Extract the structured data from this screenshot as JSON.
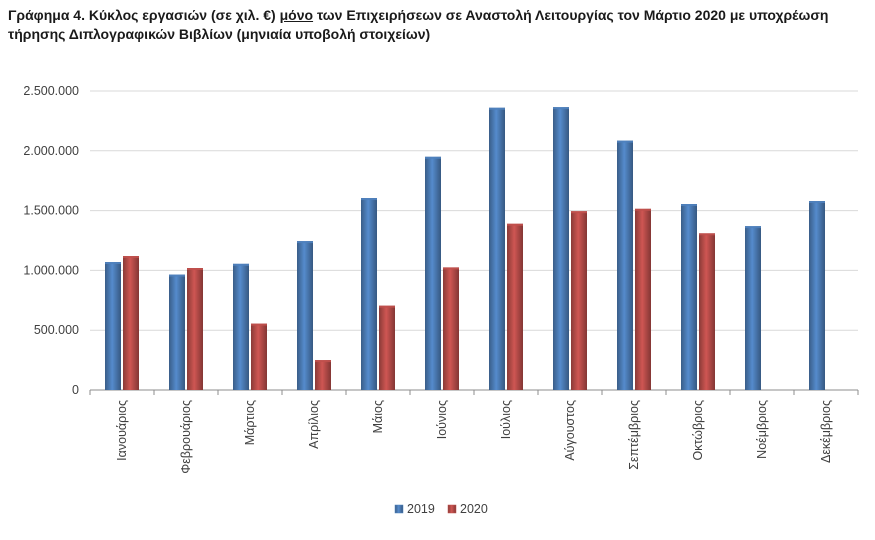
{
  "title": {
    "prefix": "Γράφημα 4",
    "part1": ". Κύκλος εργασιών (σε χιλ. €) ",
    "emphasis": "μόνο",
    "part2": " των Επιχειρήσεων σε Αναστολή Λειτουργίας τον Μάρτιο 2020 με υποχρέωση τήρησης Διπλογραφικών Βιβλίων (μηνιαία υποβολή στοιχείων)"
  },
  "chart_data": {
    "type": "bar",
    "categories": [
      "Ιανουάριος",
      "Φεβρουάριος",
      "Μάρτιος",
      "Απρίλιος",
      "Μάιος",
      "Ιούνιος",
      "Ιούλιος",
      "Αύγουστος",
      "Σεπτέμβριος",
      "Οκτώβριος",
      "Νοέμβριος",
      "Δεκέμβριος"
    ],
    "series": [
      {
        "name": "2019",
        "color": "#4F81BD",
        "values": [
          1070000,
          965000,
          1055000,
          1245000,
          1605000,
          1950000,
          2360000,
          2365000,
          2085000,
          1555000,
          1370000,
          1580000
        ]
      },
      {
        "name": "2020",
        "color": "#C0504D",
        "values": [
          1120000,
          1020000,
          555000,
          250000,
          705000,
          1025000,
          1390000,
          1495000,
          1515000,
          1310000,
          null,
          null
        ]
      }
    ],
    "ylim": [
      0,
      2500000
    ],
    "yticks": [
      0,
      500000,
      1000000,
      1500000,
      2000000,
      2500000
    ],
    "ytick_labels": [
      "0",
      "500.000",
      "1.000.000",
      "1.500.000",
      "2.000.000",
      "2.500.000"
    ],
    "grid": true,
    "legend_position": "bottom"
  }
}
